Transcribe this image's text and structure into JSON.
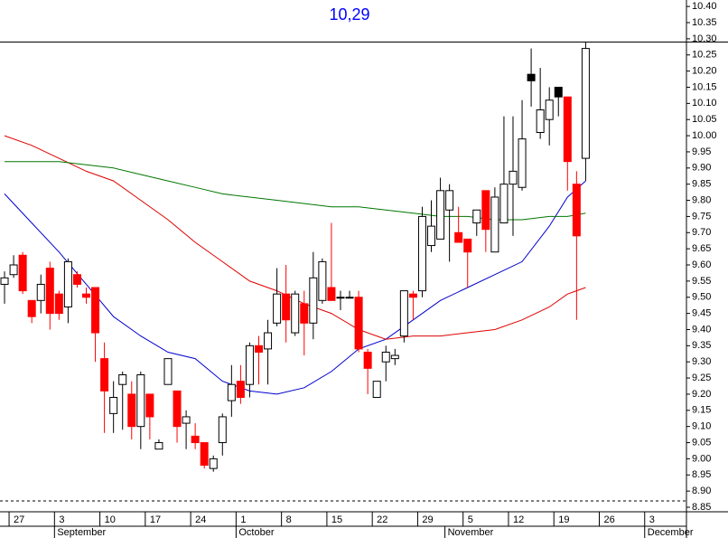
{
  "chart_data": {
    "type": "candlestick",
    "title": "10,29",
    "last_price": 10.29,
    "xlim": [
      -0.5,
      75.1
    ],
    "ylim": [
      8.836,
      10.42
    ],
    "yticks": [
      {
        "value": 10.4,
        "label": "10.40"
      },
      10.35,
      {
        "value": 10.3,
        "label": "10.30"
      },
      10.25,
      {
        "value": 10.2,
        "label": "10.20"
      },
      10.15,
      {
        "value": 10.1,
        "label": "10.10"
      },
      10.05,
      {
        "value": 10,
        "label": "10.00"
      },
      9.95,
      {
        "value": 9.9,
        "label": "9.90"
      },
      9.85,
      {
        "value": 9.8,
        "label": "9.80"
      },
      9.75,
      {
        "value": 9.7,
        "label": "9.70"
      },
      9.65,
      {
        "value": 9.6,
        "label": "9.60"
      },
      9.55,
      {
        "value": 9.5,
        "label": "9.50"
      },
      9.45,
      {
        "value": 9.4,
        "label": "9.40"
      },
      9.35,
      {
        "value": 9.3,
        "label": "9.30"
      },
      9.25,
      {
        "value": 9.2,
        "label": "9.20"
      },
      9.15,
      {
        "value": 9.1,
        "label": "9.10"
      },
      9.05,
      {
        "value": 9,
        "label": "9.00"
      },
      8.95,
      {
        "value": 8.9,
        "label": "8.90"
      },
      8.85
    ],
    "xticks": [
      {
        "value": 0.5,
        "label": "27"
      },
      {
        "value": 5.5,
        "label": "3"
      },
      {
        "value": 10.5,
        "label": "10"
      },
      {
        "value": 15.5,
        "label": "17"
      },
      {
        "value": 20.5,
        "label": "24"
      },
      {
        "value": 25.5,
        "label": "1"
      },
      {
        "value": 30.5,
        "label": "8"
      },
      {
        "value": 35.5,
        "label": "15"
      },
      {
        "value": 40.5,
        "label": "22"
      },
      {
        "value": 45.5,
        "label": "29"
      },
      {
        "value": 50.5,
        "label": "5"
      },
      {
        "value": 55.5,
        "label": "12"
      },
      {
        "value": 60.5,
        "label": "19"
      },
      {
        "value": 65.5,
        "label": "26"
      },
      {
        "value": 70.5,
        "label": "3"
      }
    ],
    "month_ticks": [
      {
        "value": 5.5,
        "label": "September"
      },
      {
        "value": 25.5,
        "label": "October"
      },
      {
        "value": 48.5,
        "label": "November"
      },
      {
        "value": 70.5,
        "label": "December"
      }
    ],
    "open": [
      9.54,
      9.57,
      9.63,
      9.49,
      9.49,
      9.59,
      9.51,
      9.47,
      9.57,
      9.51,
      9.53,
      9.31,
      9.14,
      9.23,
      9.2,
      9.1,
      9.2,
      9.03,
      9.23,
      9.21,
      9.11,
      9.07,
      9.05,
      8.97,
      9.05,
      9.18,
      9.24,
      9.23,
      9.35,
      9.34,
      9.42,
      9.51,
      9.39,
      9.48,
      9.42,
      9.49,
      9.53,
      9.5,
      9.5,
      9.5,
      9.33,
      9.19,
      9.3,
      9.31,
      9.38,
      9.51,
      9.52,
      9.66,
      9.68,
      9.77,
      9.7,
      9.68,
      9.73,
      9.83,
      9.64,
      9.73,
      9.85,
      9.84,
      10.17,
      10.01,
      10.05,
      10.12,
      10.12,
      9.85,
      9.93
    ],
    "high": [
      9.58,
      9.63,
      9.64,
      9.49,
      9.57,
      9.61,
      9.52,
      9.62,
      9.58,
      9.53,
      9.53,
      9.36,
      9.24,
      9.27,
      9.24,
      9.27,
      9.2,
      9.06,
      9.31,
      9.21,
      9.15,
      9.11,
      9.05,
      9.01,
      9.14,
      9.29,
      9.29,
      9.36,
      9.38,
      9.43,
      9.59,
      9.6,
      9.52,
      9.52,
      9.64,
      9.62,
      9.73,
      9.52,
      9.52,
      9.52,
      9.34,
      9.24,
      9.35,
      9.34,
      9.52,
      9.52,
      9.78,
      9.8,
      9.87,
      9.85,
      9.78,
      9.68,
      9.77,
      9.83,
      9.84,
      10.06,
      10.06,
      10.11,
      10.27,
      10.21,
      10.15,
      10.15,
      10.12,
      9.89,
      10.29
    ],
    "low": [
      9.48,
      9.56,
      9.51,
      9.42,
      9.45,
      9.4,
      9.43,
      9.42,
      9.53,
      9.48,
      9.3,
      9.08,
      9.08,
      9.09,
      9.06,
      9.03,
      9.06,
      9.03,
      9.23,
      9.05,
      9.03,
      9.03,
      8.97,
      8.96,
      9.01,
      9.13,
      9.17,
      9.19,
      9.23,
      9.23,
      9.41,
      9.36,
      9.38,
      9.32,
      9.37,
      9.48,
      9.49,
      9.46,
      9.5,
      9.33,
      9.2,
      9.19,
      9.24,
      9.29,
      9.36,
      9.43,
      9.5,
      9.64,
      9.68,
      9.61,
      9.67,
      9.53,
      9.69,
      9.64,
      9.64,
      9.73,
      9.69,
      9.83,
      10.09,
      9.99,
      9.97,
      10.06,
      9.83,
      9.43,
      9.86
    ],
    "close": [
      9.56,
      9.6,
      9.52,
      9.44,
      9.54,
      9.45,
      9.45,
      9.61,
      9.54,
      9.5,
      9.39,
      9.21,
      9.19,
      9.26,
      9.1,
      9.26,
      9.13,
      9.05,
      9.31,
      9.1,
      9.13,
      9.05,
      8.98,
      9.0,
      9.13,
      9.23,
      9.19,
      9.35,
      9.33,
      9.39,
      9.51,
      9.43,
      9.51,
      9.42,
      9.56,
      9.61,
      9.49,
      9.5,
      9.5,
      9.34,
      9.28,
      9.24,
      9.33,
      9.32,
      9.52,
      9.5,
      9.75,
      9.72,
      9.83,
      9.83,
      9.67,
      9.64,
      9.77,
      9.71,
      9.81,
      9.85,
      9.89,
      9.99,
      10.19,
      10.08,
      10.11,
      10.15,
      9.92,
      9.69,
      10.27
    ],
    "up_color": "#ffffff",
    "down_color": "#ff0000",
    "edge_color": "#000000",
    "doji_candles": [
      {
        "index": 58,
        "color": "#000000"
      },
      {
        "index": 61,
        "color": "#000000"
      }
    ],
    "series": [
      {
        "name": null,
        "color": "#0000cc",
        "x": [
          0,
          3,
          6,
          9,
          12,
          15,
          18,
          21,
          24,
          27,
          30,
          33,
          36,
          39,
          42,
          45,
          48,
          51,
          54,
          57,
          60,
          62,
          64
        ],
        "values": [
          9.82,
          9.73,
          9.64,
          9.54,
          9.44,
          9.38,
          9.33,
          9.31,
          9.24,
          9.21,
          9.2,
          9.22,
          9.27,
          9.34,
          9.37,
          9.43,
          9.49,
          9.53,
          9.57,
          9.61,
          9.72,
          9.81,
          9.86
        ]
      },
      {
        "name": null,
        "color": "#dd0000",
        "x": [
          0,
          3,
          6,
          9,
          12,
          15,
          18,
          21,
          24,
          27,
          30,
          33,
          36,
          39,
          42,
          45,
          48,
          51,
          54,
          57,
          60,
          62,
          64
        ],
        "values": [
          10.0,
          9.97,
          9.93,
          9.89,
          9.86,
          9.8,
          9.74,
          9.67,
          9.61,
          9.55,
          9.52,
          9.48,
          9.45,
          9.4,
          9.37,
          9.38,
          9.38,
          9.39,
          9.4,
          9.43,
          9.47,
          9.51,
          9.53
        ]
      },
      {
        "name": null,
        "color": "#007700",
        "x": [
          0,
          3,
          6,
          9,
          12,
          15,
          18,
          21,
          24,
          27,
          30,
          33,
          36,
          39,
          42,
          45,
          48,
          51,
          54,
          57,
          60,
          62,
          64
        ],
        "values": [
          9.92,
          9.92,
          9.92,
          9.91,
          9.9,
          9.88,
          9.86,
          9.84,
          9.82,
          9.81,
          9.8,
          9.79,
          9.78,
          9.78,
          9.77,
          9.76,
          9.75,
          9.75,
          9.74,
          9.74,
          9.75,
          9.75,
          9.76
        ]
      }
    ]
  }
}
